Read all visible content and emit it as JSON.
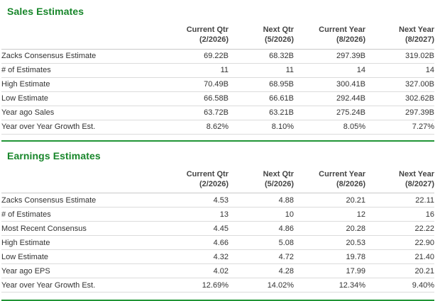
{
  "colors": {
    "accent_green": "#17862a",
    "divider_green": "#219536",
    "row_separator": "#dcdcdc",
    "header_text": "#444444",
    "body_text": "#333333"
  },
  "sections": [
    {
      "title": "Sales Estimates",
      "columns": [
        {
          "line1": "Current Qtr",
          "line2": "(2/2026)"
        },
        {
          "line1": "Next Qtr",
          "line2": "(5/2026)"
        },
        {
          "line1": "Current Year",
          "line2": "(8/2026)"
        },
        {
          "line1": "Next Year",
          "line2": "(8/2027)"
        }
      ],
      "rows": [
        {
          "label": "Zacks Consensus Estimate",
          "values": [
            "69.22B",
            "68.32B",
            "297.39B",
            "319.02B"
          ]
        },
        {
          "label": "# of Estimates",
          "values": [
            "11",
            "11",
            "14",
            "14"
          ]
        },
        {
          "label": "High Estimate",
          "values": [
            "70.49B",
            "68.95B",
            "300.41B",
            "327.00B"
          ]
        },
        {
          "label": "Low Estimate",
          "values": [
            "66.58B",
            "66.61B",
            "292.44B",
            "302.62B"
          ]
        },
        {
          "label": "Year ago Sales",
          "values": [
            "63.72B",
            "63.21B",
            "275.24B",
            "297.39B"
          ]
        },
        {
          "label": "Year over Year Growth Est.",
          "values": [
            "8.62%",
            "8.10%",
            "8.05%",
            "7.27%"
          ]
        }
      ]
    },
    {
      "title": "Earnings Estimates",
      "columns": [
        {
          "line1": "Current Qtr",
          "line2": "(2/2026)"
        },
        {
          "line1": "Next Qtr",
          "line2": "(5/2026)"
        },
        {
          "line1": "Current Year",
          "line2": "(8/2026)"
        },
        {
          "line1": "Next Year",
          "line2": "(8/2027)"
        }
      ],
      "rows": [
        {
          "label": "Zacks Consensus Estimate",
          "values": [
            "4.53",
            "4.88",
            "20.21",
            "22.11"
          ]
        },
        {
          "label": "# of Estimates",
          "values": [
            "13",
            "10",
            "12",
            "16"
          ]
        },
        {
          "label": "Most Recent Consensus",
          "values": [
            "4.45",
            "4.86",
            "20.28",
            "22.22"
          ]
        },
        {
          "label": "High Estimate",
          "values": [
            "4.66",
            "5.08",
            "20.53",
            "22.90"
          ]
        },
        {
          "label": "Low Estimate",
          "values": [
            "4.32",
            "4.72",
            "19.78",
            "21.40"
          ]
        },
        {
          "label": "Year ago EPS",
          "values": [
            "4.02",
            "4.28",
            "17.99",
            "20.21"
          ]
        },
        {
          "label": "Year over Year Growth Est.",
          "values": [
            "12.69%",
            "14.02%",
            "12.34%",
            "9.40%"
          ]
        }
      ]
    }
  ]
}
